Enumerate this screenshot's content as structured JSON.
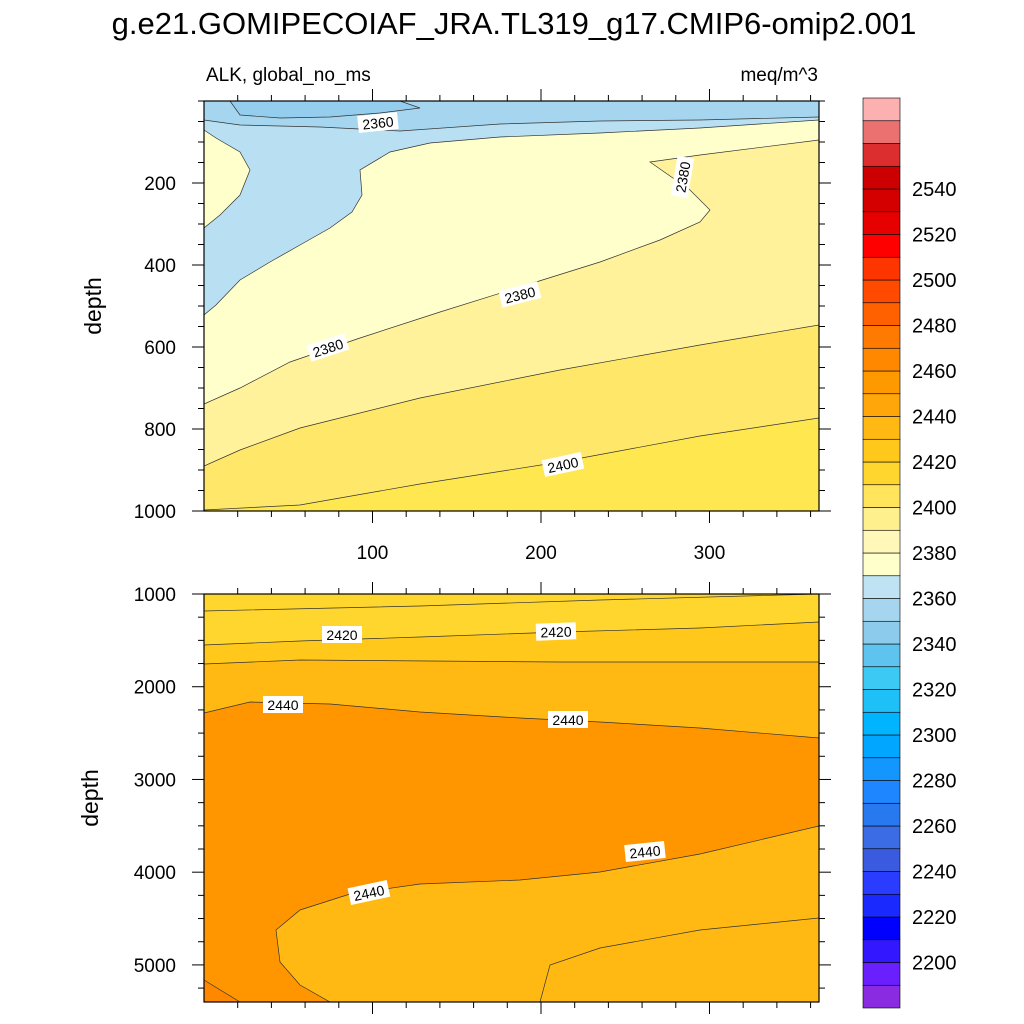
{
  "title": "g.e21.GOMIPECOIAF_JRA.TL319_g17.CMIP6-omip2.001",
  "variable_label": "ALK, global_no_ms",
  "units_label": "meq/m^3",
  "chart_data": [
    {
      "type": "contour",
      "panel": "upper",
      "ylabel": "depth",
      "xlabel": "",
      "xlim": [
        0,
        365
      ],
      "ylim": [
        1000,
        0
      ],
      "x_ticks": [
        100,
        200,
        300
      ],
      "x_tick_labels": [
        "100",
        "200",
        "300"
      ],
      "y_ticks": [
        200,
        400,
        600,
        800,
        1000
      ],
      "y_tick_labels": [
        "200",
        "400",
        "600",
        "800",
        "1000"
      ],
      "contour_labels": [
        {
          "text": "2360",
          "x": 101,
          "y": 95
        },
        {
          "text": "2380",
          "x": 285,
          "y": 4
        },
        {
          "text": "2380",
          "x": 188,
          "y": 460
        },
        {
          "text": "2380",
          "x": 72,
          "y": 612
        },
        {
          "text": "2400",
          "x": 213,
          "y": 903
        }
      ],
      "regions": [
        {
          "value": 2360,
          "desc": "top layer"
        },
        {
          "value": 2370,
          "desc": "upper-left wedge"
        },
        {
          "value": 2375,
          "desc": "mid band"
        },
        {
          "value": 2385,
          "desc": "band"
        },
        {
          "value": 2395,
          "desc": "band"
        },
        {
          "value": 2405,
          "desc": "bottom band"
        }
      ]
    },
    {
      "type": "contour",
      "panel": "lower",
      "ylabel": "depth",
      "xlabel": "",
      "xlim": [
        0,
        365
      ],
      "ylim": [
        5400,
        1000
      ],
      "x_ticks": [
        100,
        200,
        300
      ],
      "y_ticks": [
        1000,
        2000,
        3000,
        4000,
        5000
      ],
      "y_tick_labels": [
        "1000",
        "2000",
        "3000",
        "4000",
        "5000"
      ],
      "contour_labels": [
        {
          "text": "2420",
          "x": 83,
          "y": 1450
        },
        {
          "text": "2420",
          "x": 211,
          "y": 1420
        },
        {
          "text": "2440",
          "x": 47,
          "y": 2200
        },
        {
          "text": "2440",
          "x": 217,
          "y": 2370
        },
        {
          "text": "2440",
          "x": 263,
          "y": 3800
        },
        {
          "text": "2440",
          "x": 98,
          "y": 4230
        }
      ],
      "regions": [
        {
          "value": 2415,
          "desc": "top"
        },
        {
          "value": 2425,
          "desc": "upper"
        },
        {
          "value": 2435,
          "desc": "middle"
        },
        {
          "value": 2445,
          "desc": "deep core"
        },
        {
          "value": 2425,
          "desc": "bottom-right"
        }
      ]
    }
  ],
  "colorbar": {
    "levels": [
      2190,
      2200,
      2210,
      2220,
      2230,
      2240,
      2250,
      2260,
      2270,
      2280,
      2290,
      2300,
      2310,
      2320,
      2330,
      2340,
      2350,
      2360,
      2370,
      2380,
      2390,
      2400,
      2410,
      2420,
      2430,
      2440,
      2450,
      2460,
      2470,
      2480,
      2490,
      2500,
      2510,
      2520,
      2530,
      2540,
      2550,
      2560
    ],
    "colors": [
      "#8a2be2",
      "#6a1fff",
      "#3318ff",
      "#0000ff",
      "#1a2aff",
      "#2a3cff",
      "#3a5bdf",
      "#3b6ce6",
      "#2878f0",
      "#1e86ff",
      "#1496ff",
      "#00a6ff",
      "#00b4ff",
      "#1ec0f8",
      "#3ccaf5",
      "#5ec3ee",
      "#8ccbec",
      "#a6d6ef",
      "#bfe3f2",
      "#ffffcc",
      "#fff8b8",
      "#fff08e",
      "#ffe45c",
      "#ffd62e",
      "#ffc81a",
      "#ffb912",
      "#ffa70a",
      "#ff9900",
      "#ff8800",
      "#ff7a00",
      "#ff6000",
      "#ff4a00",
      "#ff3500",
      "#ff0000",
      "#e60000",
      "#d40000",
      "#cc0000",
      "#dc2e2e",
      "#eb7070",
      "#fcb0b0"
    ],
    "tick_labels": [
      "2200",
      "2220",
      "2240",
      "2260",
      "2280",
      "2300",
      "2320",
      "2340",
      "2360",
      "2380",
      "2400",
      "2420",
      "2440",
      "2460",
      "2480",
      "2500",
      "2520",
      "2540"
    ]
  }
}
